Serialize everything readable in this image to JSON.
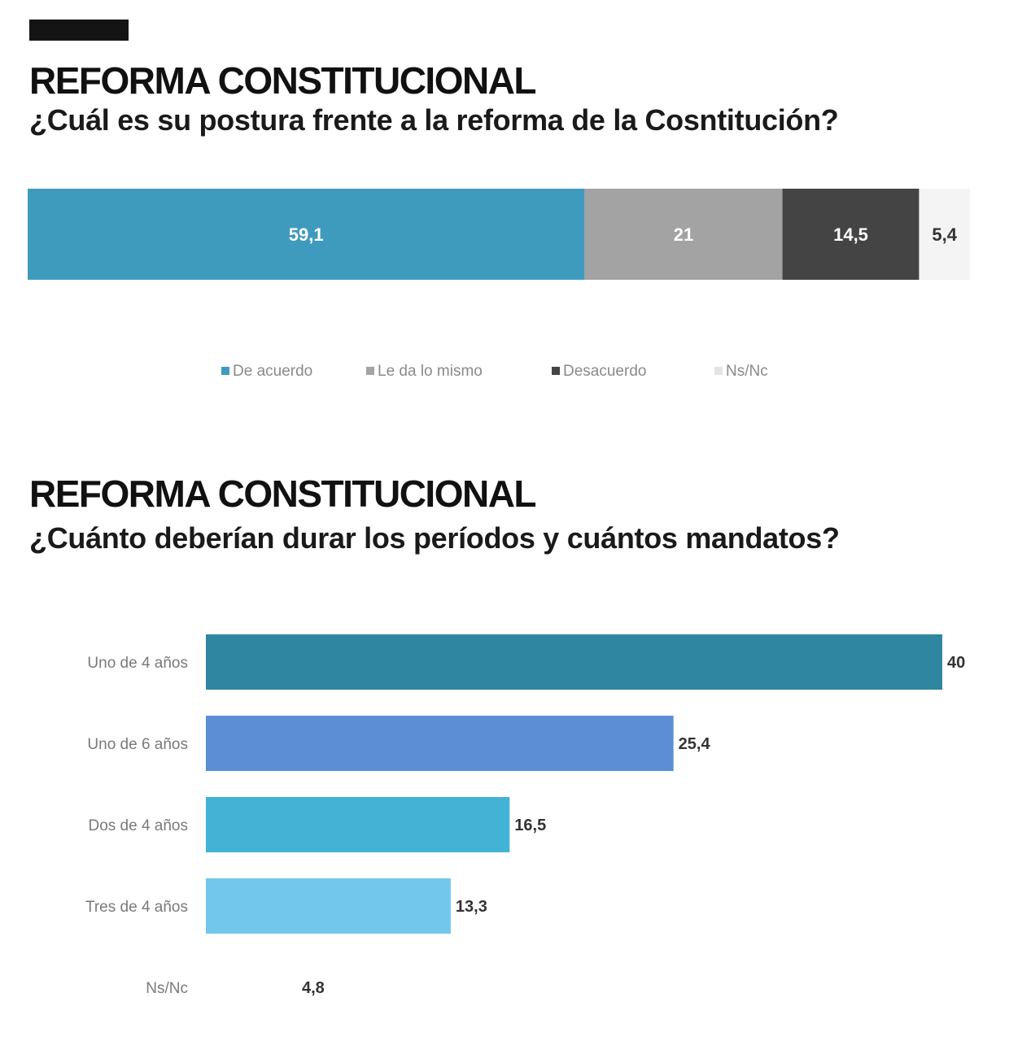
{
  "section1": {
    "title": "REFORMA CONSTITUCIONAL",
    "subtitle": "¿Cuál es su postura frente a la reforma de la Cosntitución?"
  },
  "section2": {
    "title": "REFORMA CONSTITUCIONAL",
    "subtitle": "¿Cuánto deberían durar los períodos y cuántos mandatos?"
  },
  "chart_data": [
    {
      "type": "bar",
      "orientation": "horizontal-stacked",
      "categories": [
        "De acuerdo",
        "Le da lo mismo",
        "Desacuerdo",
        "Ns/Nc"
      ],
      "values": [
        59.1,
        21,
        14.5,
        5.4
      ],
      "value_labels": [
        "59,1",
        "21",
        "14,5",
        "5,4"
      ],
      "colors": [
        "#3f9bbd",
        "#a3a3a3",
        "#444444",
        "#f4f4f4"
      ],
      "label_colors": [
        "#ffffff",
        "#ffffff",
        "#ffffff",
        "#333333"
      ],
      "legend_position": "bottom",
      "grid": false
    },
    {
      "type": "bar",
      "orientation": "horizontal",
      "categories": [
        "Uno de 4 años",
        "Uno de 6 años",
        "Dos de 4 años",
        "Tres de 4 años",
        "Ns/Nc"
      ],
      "values": [
        40,
        25.4,
        16.5,
        13.3,
        4.8
      ],
      "value_labels": [
        "40",
        "25,4",
        "16,5",
        "13,3",
        "4,8"
      ],
      "colors": [
        "#2e86a0",
        "#5b8ed4",
        "#42b3d4",
        "#72c7ec",
        "#ffffff"
      ],
      "xlim": [
        0,
        40
      ],
      "grid": false
    }
  ]
}
